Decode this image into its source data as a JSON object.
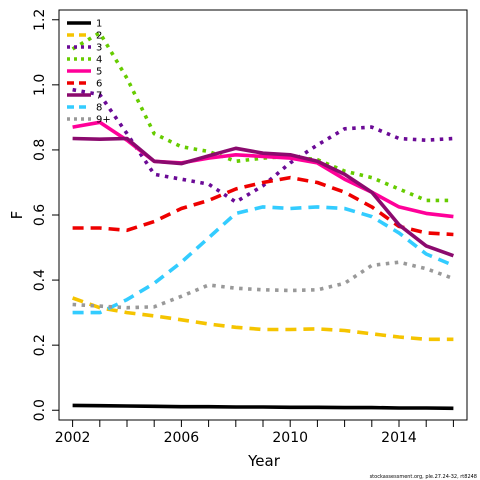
{
  "chart_data": {
    "type": "line",
    "xlabel": "Year",
    "ylabel": "F",
    "xlim": [
      2001.5,
      2016.5
    ],
    "ylim": [
      -0.03,
      1.23
    ],
    "x_ticks": [
      "2002",
      "2006",
      "2010",
      "2014"
    ],
    "x_tick_values": [
      2002,
      2006,
      2010,
      2014
    ],
    "y_ticks": [
      "0.0",
      "0.2",
      "0.4",
      "0.6",
      "0.8",
      "1.0",
      "1.2"
    ],
    "y_tick_values": [
      0.0,
      0.2,
      0.4,
      0.6,
      0.8,
      1.0,
      1.2
    ],
    "legend_position": "top-left",
    "grid": false,
    "x": [
      2002,
      2003,
      2004,
      2005,
      2006,
      2007,
      2008,
      2009,
      2010,
      2011,
      2012,
      2013,
      2014,
      2015,
      2016
    ],
    "series": [
      {
        "name": "1",
        "color": "#000000",
        "dash": "solid",
        "values": [
          0.015,
          0.014,
          0.013,
          0.012,
          0.011,
          0.011,
          0.01,
          0.01,
          0.009,
          0.009,
          0.008,
          0.008,
          0.007,
          0.007,
          0.006
        ]
      },
      {
        "name": "2",
        "color": "#F5C400",
        "dash": "dashed",
        "values": [
          0.345,
          0.315,
          0.3,
          0.29,
          0.278,
          0.265,
          0.255,
          0.248,
          0.248,
          0.25,
          0.245,
          0.235,
          0.225,
          0.218,
          0.218
        ]
      },
      {
        "name": "3",
        "color": "#6B0A96",
        "dash": "dotted",
        "values": [
          0.985,
          0.97,
          0.85,
          0.725,
          0.71,
          0.695,
          0.64,
          0.69,
          0.76,
          0.815,
          0.865,
          0.87,
          0.835,
          0.83,
          0.835
        ]
      },
      {
        "name": "4",
        "color": "#66CC00",
        "dash": "dotted",
        "values": [
          1.11,
          1.16,
          1.02,
          0.85,
          0.81,
          0.795,
          0.765,
          0.775,
          0.78,
          0.77,
          0.735,
          0.715,
          0.68,
          0.645,
          0.645
        ]
      },
      {
        "name": "5",
        "color": "#FF0099",
        "dash": "solid",
        "values": [
          0.87,
          0.885,
          0.83,
          0.765,
          0.76,
          0.775,
          0.785,
          0.78,
          0.775,
          0.76,
          0.71,
          0.67,
          0.625,
          0.605,
          0.595
        ]
      },
      {
        "name": "6",
        "color": "#EE0000",
        "dash": "dashed",
        "values": [
          0.56,
          0.56,
          0.553,
          0.58,
          0.62,
          0.645,
          0.68,
          0.7,
          0.715,
          0.7,
          0.67,
          0.625,
          0.565,
          0.545,
          0.54
        ]
      },
      {
        "name": "7",
        "color": "#8B0A6E",
        "dash": "solid",
        "values": [
          0.835,
          0.833,
          0.835,
          0.765,
          0.758,
          0.782,
          0.805,
          0.79,
          0.785,
          0.765,
          0.725,
          0.67,
          0.57,
          0.505,
          0.475
        ]
      },
      {
        "name": "8",
        "color": "#33CCFF",
        "dash": "dashed",
        "values": [
          0.3,
          0.3,
          0.34,
          0.39,
          0.455,
          0.53,
          0.605,
          0.625,
          0.62,
          0.625,
          0.62,
          0.595,
          0.545,
          0.48,
          0.445
        ]
      },
      {
        "name": "9+",
        "color": "#999999",
        "dash": "dotted",
        "values": [
          0.325,
          0.32,
          0.315,
          0.318,
          0.35,
          0.385,
          0.375,
          0.37,
          0.368,
          0.37,
          0.39,
          0.445,
          0.455,
          0.435,
          0.405
        ]
      }
    ]
  },
  "footnote": "stockassessment.org, ple.27.24-32, rt8248"
}
